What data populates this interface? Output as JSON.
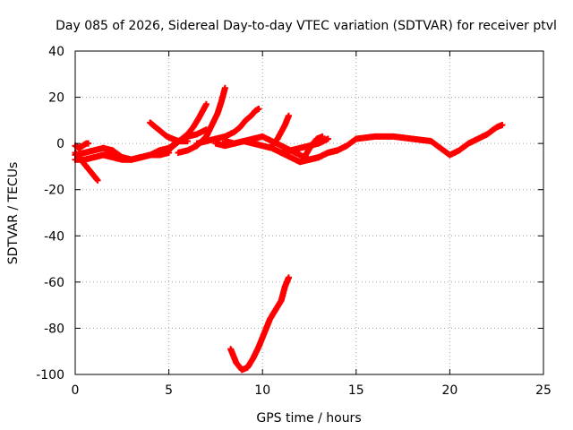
{
  "chart_data": {
    "type": "scatter",
    "title": "Day 085 of 2026, Sidereal Day-to-day VTEC variation (SDTVAR) for receiver ptvl",
    "xlabel": "GPS time / hours",
    "ylabel": "SDTVAR / TECUs",
    "xlim": [
      0,
      25
    ],
    "ylim": [
      -100,
      40
    ],
    "xticks": [
      "0",
      "5",
      "10",
      "15",
      "20",
      "25"
    ],
    "yticks": [
      "-100",
      "-80",
      "-60",
      "-40",
      "-20",
      "0",
      "20",
      "40"
    ],
    "grid": true,
    "marker_color": "#ff0000",
    "series": [
      {
        "x": [
          0.0,
          0.2,
          0.4,
          0.6,
          0.7
        ],
        "y": [
          -1,
          -2,
          -1,
          0,
          0
        ]
      },
      {
        "x": [
          0.0,
          0.2,
          0.4,
          0.6,
          0.8,
          1.0,
          1.2
        ],
        "y": [
          -4,
          -6,
          -8,
          -10,
          -12,
          -14,
          -16
        ]
      },
      {
        "x": [
          0.0,
          0.5,
          1.0,
          1.5,
          2.0,
          2.5,
          3.0,
          3.5,
          4.0,
          4.5,
          5.0
        ],
        "y": [
          -5,
          -4,
          -3,
          -2,
          -4,
          -6,
          -7,
          -6,
          -5,
          -4,
          -3
        ]
      },
      {
        "x": [
          0.0,
          0.5,
          1.0,
          1.5,
          2.0,
          2.5,
          3.0,
          3.5,
          4.0,
          4.5,
          5.0
        ],
        "y": [
          -7,
          -7,
          -6,
          -5,
          -6,
          -7,
          -7,
          -6,
          -5,
          -5,
          -4
        ]
      },
      {
        "x": [
          1.5,
          2.0,
          2.5,
          3.0,
          3.5,
          4.0,
          4.5,
          5.0,
          5.5,
          6.0,
          6.5,
          7.0
        ],
        "y": [
          -2,
          -3,
          -6,
          -7,
          -6,
          -5,
          -3,
          -2,
          1,
          3,
          4,
          6
        ]
      },
      {
        "x": [
          4.0,
          4.3,
          4.6,
          4.9,
          5.2,
          5.5,
          5.8,
          6.0
        ],
        "y": [
          9,
          7,
          5,
          3,
          2,
          1,
          1,
          1
        ]
      },
      {
        "x": [
          4.5,
          4.8,
          5.1,
          5.4,
          5.7,
          6.0,
          6.3,
          6.6,
          6.8,
          7.0
        ],
        "y": [
          -5,
          -4,
          -2,
          0,
          2,
          4,
          7,
          11,
          14,
          17
        ]
      },
      {
        "x": [
          5.5,
          6.0,
          6.5,
          7.0,
          7.3,
          7.6,
          7.8,
          8.0
        ],
        "y": [
          -4,
          -3,
          -1,
          3,
          8,
          13,
          18,
          24
        ]
      },
      {
        "x": [
          6.5,
          7.0,
          7.5,
          8.0,
          8.5,
          8.8,
          9.1,
          9.4,
          9.6,
          9.8
        ],
        "y": [
          0,
          1,
          2,
          3,
          5,
          7,
          10,
          12,
          14,
          15
        ]
      },
      {
        "x": [
          7.5,
          8.0,
          8.5,
          9.0,
          9.5,
          10.0,
          10.5,
          11.0,
          11.5,
          12.0,
          12.5,
          13.0,
          13.5,
          14.0
        ],
        "y": [
          0,
          -1,
          0,
          1,
          2,
          3,
          1,
          -1,
          -3,
          -5,
          -7,
          -6,
          -4,
          -3
        ]
      },
      {
        "x": [
          8.0,
          8.5,
          9.0,
          9.5,
          10.0,
          10.5,
          11.0,
          11.5,
          12.0,
          12.5,
          13.0,
          13.5,
          14.0,
          14.5,
          15.0
        ],
        "y": [
          1,
          0,
          1,
          0,
          -1,
          -2,
          -4,
          -6,
          -8,
          -7,
          -6,
          -4,
          -3,
          -1,
          2
        ]
      },
      {
        "x": [
          10.5,
          10.8,
          11.0,
          11.2,
          11.4
        ],
        "y": [
          -1,
          2,
          5,
          8,
          12
        ]
      },
      {
        "x": [
          11.0,
          11.5,
          12.0,
          12.5,
          13.0,
          13.5
        ],
        "y": [
          -4,
          -3,
          -2,
          -1,
          0,
          2
        ]
      },
      {
        "x": [
          12.3,
          12.6,
          12.9,
          13.2
        ],
        "y": [
          -5,
          -1,
          2,
          3
        ]
      },
      {
        "x": [
          15.0,
          16.0,
          17.0,
          18.0,
          19.0,
          19.5,
          20.0,
          20.5,
          21.0,
          21.5,
          22.0,
          22.5,
          22.8
        ],
        "y": [
          2,
          3,
          3,
          2,
          1,
          -2,
          -5,
          -3,
          0,
          2,
          4,
          7,
          8
        ]
      },
      {
        "x": [
          8.3,
          8.6,
          8.9,
          9.2,
          9.5,
          9.8,
          10.1,
          10.4,
          10.7,
          11.0,
          11.2,
          11.4
        ],
        "y": [
          -89,
          -95,
          -98,
          -97,
          -93,
          -88,
          -82,
          -76,
          -72,
          -68,
          -62,
          -58
        ]
      }
    ]
  }
}
